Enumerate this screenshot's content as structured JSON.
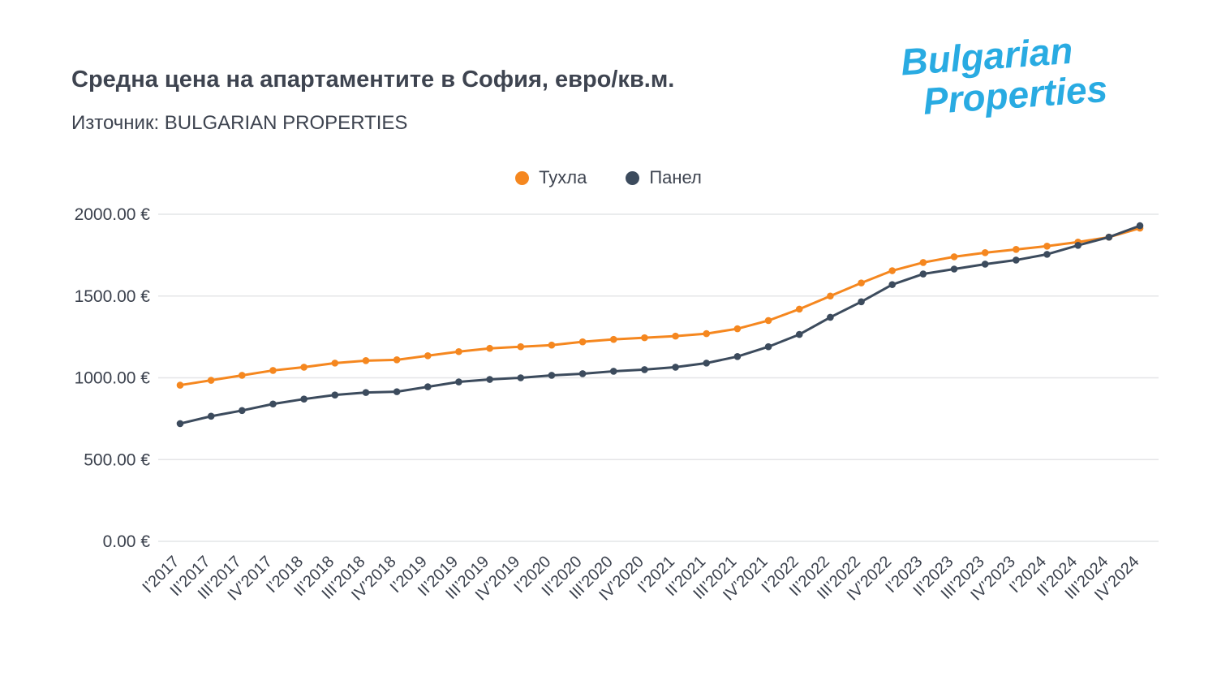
{
  "header": {
    "title": "Средна цена на апартаментите в София, евро/кв.м.",
    "source": "Източник: BULGARIAN PROPERTIES",
    "logo_line1": "Bulgarian",
    "logo_line2": "Properties",
    "logo_color": "#29abe2"
  },
  "chart_data": {
    "type": "line",
    "title": "Средна цена на апартаментите в София, евро/кв.м.",
    "source_label": "Източник: BULGARIAN PROPERTIES",
    "xlabel": "",
    "ylabel": "",
    "ylim": [
      0,
      2000
    ],
    "yticks": [
      0,
      500,
      1000,
      1500,
      2000
    ],
    "ytick_labels": [
      "0.00 €",
      "500.00 €",
      "1000.00 €",
      "1500.00 €",
      "2000.00 €"
    ],
    "grid": true,
    "legend_position": "top-center",
    "x": [
      "I’2017",
      "II’2017",
      "III’2017",
      "IV’2017",
      "I’2018",
      "II’2018",
      "III’2018",
      "IV’2018",
      "I’2019",
      "II’2019",
      "III’2019",
      "IV’2019",
      "I’2020",
      "II’2020",
      "III’2020",
      "IV’2020",
      "I’2021",
      "II’2021",
      "III’2021",
      "IV’2021",
      "I’2022",
      "II’2022",
      "III’2022",
      "IV’2022",
      "I’2023",
      "II’2023",
      "III’2023",
      "IV’2023",
      "I’2024",
      "II’2024",
      "III’2024",
      "IV’2024"
    ],
    "series": [
      {
        "name": "Тухла",
        "color": "#f5871f",
        "values": [
          955,
          985,
          1015,
          1045,
          1065,
          1090,
          1105,
          1110,
          1135,
          1160,
          1180,
          1190,
          1200,
          1220,
          1235,
          1245,
          1255,
          1270,
          1300,
          1350,
          1420,
          1500,
          1580,
          1655,
          1705,
          1740,
          1765,
          1785,
          1805,
          1830,
          1860,
          1915
        ],
        "point_count": 32
      },
      {
        "name": "Панел",
        "color": "#3c4b5d",
        "values": [
          720,
          765,
          800,
          840,
          870,
          895,
          910,
          915,
          945,
          975,
          990,
          1000,
          1015,
          1025,
          1040,
          1050,
          1065,
          1090,
          1130,
          1190,
          1265,
          1370,
          1465,
          1570,
          1635,
          1665,
          1695,
          1720,
          1755,
          1810,
          1860,
          1930
        ],
        "point_count": 32
      }
    ]
  }
}
